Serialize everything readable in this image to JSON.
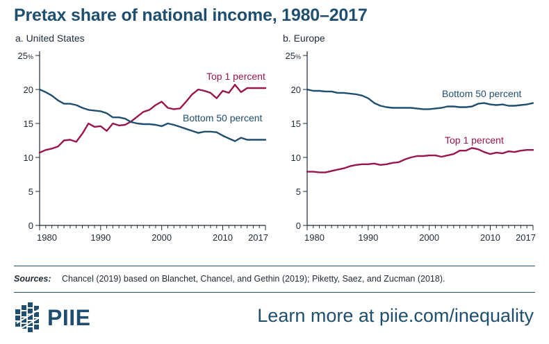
{
  "header": {
    "title": "Pretax share of national income, 1980–2017"
  },
  "colors": {
    "navy": "#1f4e6e",
    "maroon": "#98154e",
    "axis": "#1f2a36"
  },
  "chart_data": [
    {
      "type": "line",
      "panel_label": "a. United States",
      "xlim": [
        1980,
        2017
      ],
      "ylim": [
        0,
        25
      ],
      "x_ticks": [
        "1980",
        "1990",
        "2000",
        "2010",
        "2017"
      ],
      "y_ticks": [
        "0",
        "5",
        "10",
        "15",
        "20",
        "25%"
      ],
      "grid": false,
      "series": [
        {
          "name": "Top 1 percent",
          "color": "#98154e",
          "x": [
            1980,
            1981,
            1982,
            1983,
            1984,
            1985,
            1986,
            1987,
            1988,
            1989,
            1990,
            1991,
            1992,
            1993,
            1994,
            1995,
            1996,
            1997,
            1998,
            1999,
            2000,
            2001,
            2002,
            2003,
            2004,
            2005,
            2006,
            2007,
            2008,
            2009,
            2010,
            2011,
            2012,
            2013,
            2014,
            2015,
            2016,
            2017
          ],
          "values": [
            10.7,
            11.1,
            11.3,
            11.6,
            12.5,
            12.6,
            12.3,
            13.5,
            15.0,
            14.5,
            14.6,
            13.9,
            15.0,
            14.7,
            14.8,
            15.3,
            16.0,
            16.7,
            17.0,
            17.7,
            18.2,
            17.3,
            17.1,
            17.2,
            18.2,
            19.3,
            20.0,
            19.8,
            19.5,
            18.7,
            19.8,
            19.5,
            20.7,
            19.6,
            20.2,
            20.2,
            20.2,
            20.2
          ]
        },
        {
          "name": "Bottom 50 percent",
          "color": "#1f4e6e",
          "x": [
            1980,
            1981,
            1982,
            1983,
            1984,
            1985,
            1986,
            1987,
            1988,
            1989,
            1990,
            1991,
            1992,
            1993,
            1994,
            1995,
            1996,
            1997,
            1998,
            1999,
            2000,
            2001,
            2002,
            2003,
            2004,
            2005,
            2006,
            2007,
            2008,
            2009,
            2010,
            2011,
            2012,
            2013,
            2014,
            2015,
            2016,
            2017
          ],
          "values": [
            20.0,
            19.6,
            19.1,
            18.4,
            17.9,
            17.9,
            17.7,
            17.3,
            17.0,
            16.9,
            16.8,
            16.5,
            15.9,
            15.9,
            15.7,
            15.2,
            15.0,
            14.9,
            14.9,
            14.8,
            14.6,
            15.0,
            14.8,
            14.5,
            14.2,
            13.9,
            13.6,
            13.8,
            13.8,
            13.7,
            13.2,
            12.8,
            12.4,
            12.9,
            12.6,
            12.6,
            12.6,
            12.6
          ]
        }
      ]
    },
    {
      "type": "line",
      "panel_label": "b. Europe",
      "xlim": [
        1980,
        2017
      ],
      "ylim": [
        0,
        25
      ],
      "x_ticks": [
        "1980",
        "1990",
        "2000",
        "2010",
        "2017"
      ],
      "y_ticks": [
        "0",
        "5",
        "10",
        "15",
        "20",
        "25%"
      ],
      "grid": false,
      "series": [
        {
          "name": "Top 1 percent",
          "color": "#98154e",
          "x": [
            1980,
            1981,
            1982,
            1983,
            1984,
            1985,
            1986,
            1987,
            1988,
            1989,
            1990,
            1991,
            1992,
            1993,
            1994,
            1995,
            1996,
            1997,
            1998,
            1999,
            2000,
            2001,
            2002,
            2003,
            2004,
            2005,
            2006,
            2007,
            2008,
            2009,
            2010,
            2011,
            2012,
            2013,
            2014,
            2015,
            2016,
            2017
          ],
          "values": [
            7.9,
            7.9,
            7.8,
            7.8,
            8.0,
            8.2,
            8.4,
            8.7,
            8.9,
            9.0,
            9.0,
            9.1,
            8.9,
            9.0,
            9.2,
            9.3,
            9.7,
            10.0,
            10.2,
            10.2,
            10.3,
            10.3,
            10.1,
            10.3,
            10.5,
            11.0,
            11.0,
            11.4,
            11.2,
            10.8,
            10.5,
            10.7,
            10.6,
            10.9,
            10.8,
            11.0,
            11.1,
            11.1
          ]
        },
        {
          "name": "Bottom 50 percent",
          "color": "#1f4e6e",
          "x": [
            1980,
            1981,
            1982,
            1983,
            1984,
            1985,
            1986,
            1987,
            1988,
            1989,
            1990,
            1991,
            1992,
            1993,
            1994,
            1995,
            1996,
            1997,
            1998,
            1999,
            2000,
            2001,
            2002,
            2003,
            2004,
            2005,
            2006,
            2007,
            2008,
            2009,
            2010,
            2011,
            2012,
            2013,
            2014,
            2015,
            2016,
            2017
          ],
          "values": [
            20.0,
            19.8,
            19.8,
            19.7,
            19.7,
            19.5,
            19.5,
            19.4,
            19.3,
            19.1,
            18.7,
            18.0,
            17.6,
            17.4,
            17.3,
            17.3,
            17.3,
            17.3,
            17.2,
            17.1,
            17.1,
            17.2,
            17.3,
            17.5,
            17.5,
            17.4,
            17.4,
            17.5,
            17.9,
            18.0,
            17.8,
            17.7,
            17.8,
            17.6,
            17.6,
            17.7,
            17.8,
            18.0
          ]
        }
      ]
    }
  ],
  "series_labels": {
    "us_top1": "Top 1 percent",
    "us_bottom50": "Bottom 50 percent",
    "eu_bottom50": "Bottom 50 percent",
    "eu_top1": "Top 1 percent"
  },
  "footer": {
    "sources_label": "Sources:",
    "sources_text": "Chancel (2019) based on Blanchet, Chancel, and Gethin (2019); Piketty, Saez, and Zucman (2018).",
    "logo_text": "PIIE",
    "learn_more": "Learn more at piie.com/inequality"
  }
}
